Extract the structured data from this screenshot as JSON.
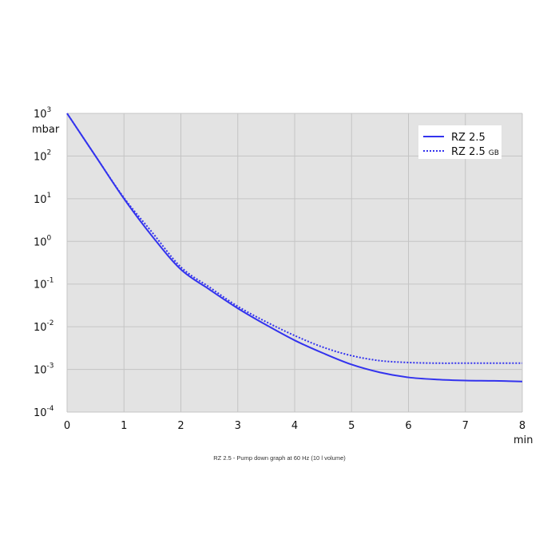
{
  "chart_data": {
    "type": "line",
    "title": "",
    "caption": "RZ 2.5 - Pump down graph at 60 Hz (10 l volume)",
    "xlabel": "min",
    "ylabel": "mbar",
    "xlim": [
      0,
      8
    ],
    "ylim": [
      0.0001,
      1000
    ],
    "y_scale": "log",
    "grid": true,
    "legend_position": "top-right",
    "x_ticks": [
      "0",
      "1",
      "2",
      "3",
      "4",
      "5",
      "6",
      "7",
      "8"
    ],
    "y_ticks": [
      {
        "value": 1000,
        "base": "10",
        "exp": "3"
      },
      {
        "value": 100,
        "base": "10",
        "exp": "2"
      },
      {
        "value": 10,
        "base": "10",
        "exp": "1"
      },
      {
        "value": 1,
        "base": "10",
        "exp": "0"
      },
      {
        "value": 0.1,
        "base": "10",
        "exp": "-1"
      },
      {
        "value": 0.01,
        "base": "10",
        "exp": "-2"
      },
      {
        "value": 0.001,
        "base": "10",
        "exp": "-3"
      },
      {
        "value": 0.0001,
        "base": "10",
        "exp": "-4"
      }
    ],
    "series": [
      {
        "name": "RZ 2.5",
        "name_sub": "",
        "style": "solid",
        "color": "#3333ee",
        "x": [
          0,
          0.5,
          1,
          1.5,
          2,
          2.5,
          3,
          3.5,
          4,
          4.5,
          5,
          5.5,
          6,
          6.5,
          7,
          7.5,
          8
        ],
        "y": [
          1000,
          100,
          10,
          1.3,
          0.22,
          0.075,
          0.027,
          0.011,
          0.0048,
          0.0024,
          0.0013,
          0.00085,
          0.00065,
          0.00058,
          0.00055,
          0.00054,
          0.00052
        ]
      },
      {
        "name": "RZ 2.5",
        "name_sub": "GB",
        "style": "dotted",
        "color": "#3333ee",
        "x": [
          0,
          0.5,
          1,
          1.5,
          2,
          2.5,
          3,
          3.5,
          4,
          4.5,
          5,
          5.5,
          6,
          6.5,
          7,
          7.5,
          8
        ],
        "y": [
          1000,
          100,
          10.5,
          1.6,
          0.25,
          0.085,
          0.03,
          0.013,
          0.0062,
          0.0033,
          0.0021,
          0.0016,
          0.00145,
          0.0014,
          0.0014,
          0.0014,
          0.0014
        ]
      }
    ]
  }
}
